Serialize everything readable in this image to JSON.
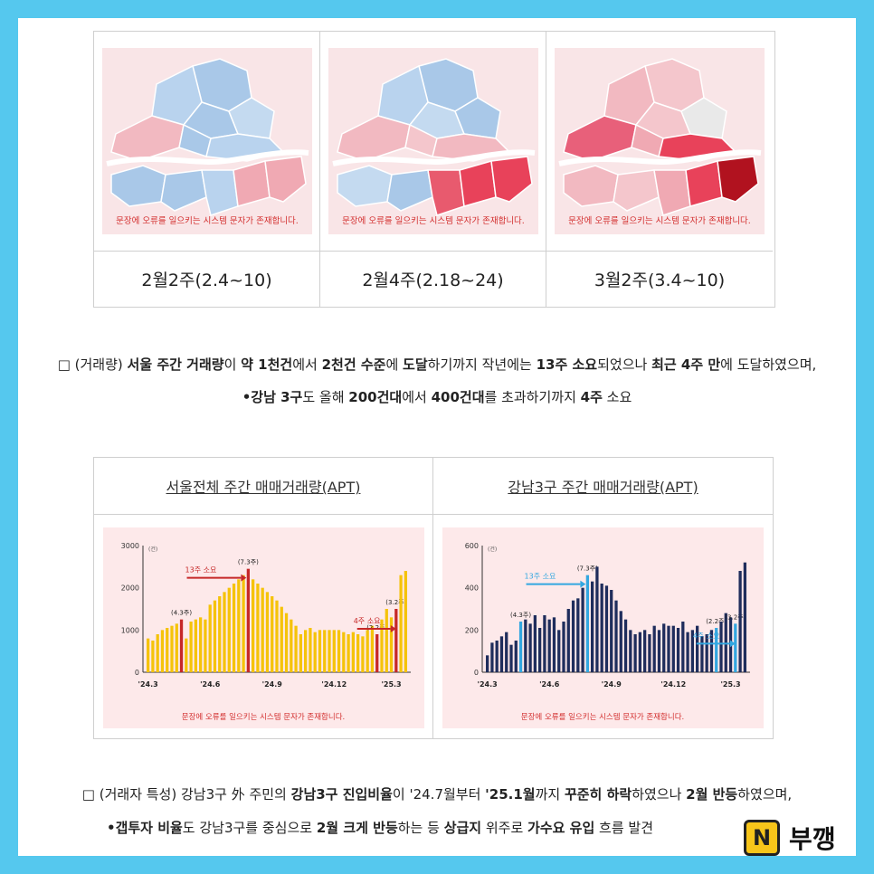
{
  "maps": [
    {
      "caption": "2월2주(2.4~10)",
      "error_note": "문장에 오류를 일으키는 시스템 문자가 존재합니다.",
      "tone": "blue"
    },
    {
      "caption": "2월4주(2.18~24)",
      "error_note": "문장에 오류를 일으키는 시스템 문자가 존재합니다.",
      "tone": "mixed"
    },
    {
      "caption": "3월2주(3.4~10)",
      "error_note": "문장에 오류를 일으키는 시스템 문자가 존재합니다.",
      "tone": "red"
    }
  ],
  "para1": {
    "line1": [
      {
        "t": "□ (거래량) ",
        "b": false
      },
      {
        "t": "서울 주간 거래량",
        "b": true
      },
      {
        "t": "이 ",
        "b": false
      },
      {
        "t": "약 1천건",
        "b": true
      },
      {
        "t": "에서 ",
        "b": false
      },
      {
        "t": "2천건 수준",
        "b": true
      },
      {
        "t": "에 ",
        "b": false
      },
      {
        "t": "도달",
        "b": true
      },
      {
        "t": "하기까지 작년에는 ",
        "b": false
      },
      {
        "t": "13주 소요",
        "b": true
      },
      {
        "t": "되었으나 ",
        "b": false
      },
      {
        "t": "최근 4주 만",
        "b": true
      },
      {
        "t": "에 도달하였으며,",
        "b": false
      }
    ],
    "line2": [
      {
        "t": "•강남 3구",
        "b": true
      },
      {
        "t": "도 올해 ",
        "b": false
      },
      {
        "t": "200건대",
        "b": true
      },
      {
        "t": "에서 ",
        "b": false
      },
      {
        "t": "400건대",
        "b": true
      },
      {
        "t": "를 초과하기까지 ",
        "b": false
      },
      {
        "t": "4주",
        "b": true
      },
      {
        "t": " 소요",
        "b": false
      }
    ]
  },
  "chart_data": [
    {
      "type": "bar",
      "title": "서울전체 주간 매매거래량(APT)",
      "unit": "(건)",
      "ylim": [
        0,
        3000
      ],
      "yticks": [
        0,
        1000,
        2000,
        3000
      ],
      "xtick_labels": [
        "'24.3",
        "'24.6",
        "'24.9",
        "'24.12",
        "'25.3"
      ],
      "xtick_index": [
        0,
        13,
        26,
        39,
        51
      ],
      "values": [
        800,
        750,
        900,
        1000,
        1050,
        1100,
        1150,
        1250,
        800,
        1200,
        1250,
        1300,
        1250,
        1600,
        1700,
        1800,
        1900,
        2000,
        2100,
        2200,
        2300,
        2450,
        2200,
        2100,
        2000,
        1900,
        1800,
        1700,
        1550,
        1400,
        1250,
        1100,
        900,
        1000,
        1050,
        950,
        1000,
        1000,
        1000,
        1000,
        1000,
        950,
        900,
        950,
        900,
        850,
        1000,
        1100,
        900,
        1250,
        1500,
        1300,
        1500,
        2300,
        2400
      ],
      "highlight": [
        {
          "index": 7,
          "label": "(4.3주)"
        },
        {
          "index": 21,
          "label": "(7.3주)"
        },
        {
          "index": 48,
          "label": "(2.2주)"
        },
        {
          "index": 52,
          "label": "(3.2주)"
        }
      ],
      "annotations": [
        "13주 소요",
        "4주 소요"
      ],
      "bar_color": "#f5c30a",
      "highlight_color": "#c62828",
      "error_note": "문장에 오류를 일으키는 시스템 문자가 존재합니다."
    },
    {
      "type": "bar",
      "title": "강남3구 주간 매매거래량(APT)",
      "unit": "(건)",
      "ylim": [
        0,
        600
      ],
      "yticks": [
        0,
        200,
        400,
        600
      ],
      "xtick_labels": [
        "'24.3",
        "'24.6",
        "'24.9",
        "'24.12",
        "'25.3"
      ],
      "xtick_index": [
        0,
        13,
        26,
        39,
        51
      ],
      "values": [
        80,
        140,
        150,
        170,
        190,
        130,
        150,
        240,
        250,
        230,
        270,
        210,
        270,
        250,
        260,
        200,
        240,
        300,
        340,
        350,
        400,
        460,
        430,
        500,
        420,
        410,
        390,
        340,
        290,
        250,
        200,
        180,
        190,
        200,
        180,
        220,
        200,
        230,
        220,
        220,
        210,
        240,
        190,
        200,
        220,
        170,
        180,
        200,
        210,
        240,
        280,
        260,
        230,
        480,
        520
      ],
      "highlight": [
        {
          "index": 7,
          "label": "(4.3주)"
        },
        {
          "index": 21,
          "label": "(7.3주)"
        },
        {
          "index": 48,
          "label": "(2.2주)"
        },
        {
          "index": 52,
          "label": "(3.2주)"
        }
      ],
      "annotations": [
        "13주 소요",
        "4주 소요"
      ],
      "bar_color": "#1f2d5c",
      "highlight_color": "#33a7e0",
      "error_note": "문장에 오류를 일으키는 시스템 문자가 존재합니다."
    }
  ],
  "para2": {
    "line1": [
      {
        "t": "□ (거래자 특성) 강남3구 外 주민의 ",
        "b": false
      },
      {
        "t": "강남3구 진입비율",
        "b": true
      },
      {
        "t": "이 '24.7월부터 ",
        "b": false
      },
      {
        "t": "'25.1월",
        "b": true
      },
      {
        "t": "까지 ",
        "b": false
      },
      {
        "t": "꾸준히 하락",
        "b": true
      },
      {
        "t": "하였으나 ",
        "b": false
      },
      {
        "t": "2월 반등",
        "b": true
      },
      {
        "t": "하였으며,",
        "b": false
      }
    ],
    "line2": [
      {
        "t": "•갭투자 비율",
        "b": true
      },
      {
        "t": "도 강남3구를 중심으로 ",
        "b": false
      },
      {
        "t": "2월 크게 반등",
        "b": true
      },
      {
        "t": "하는 등 ",
        "b": false
      },
      {
        "t": "상급지",
        "b": true
      },
      {
        "t": " 위주로 ",
        "b": false
      },
      {
        "t": "가수요 유입",
        "b": true
      },
      {
        "t": " 흐름 발견",
        "b": false
      }
    ]
  },
  "logo": {
    "letter": "N",
    "text": "부깽"
  },
  "colors": {
    "frame": "#55c8ee",
    "map_bg": "#f9e5e7",
    "blue_region": "#a9c8e8",
    "red_region": "#e8425a"
  }
}
